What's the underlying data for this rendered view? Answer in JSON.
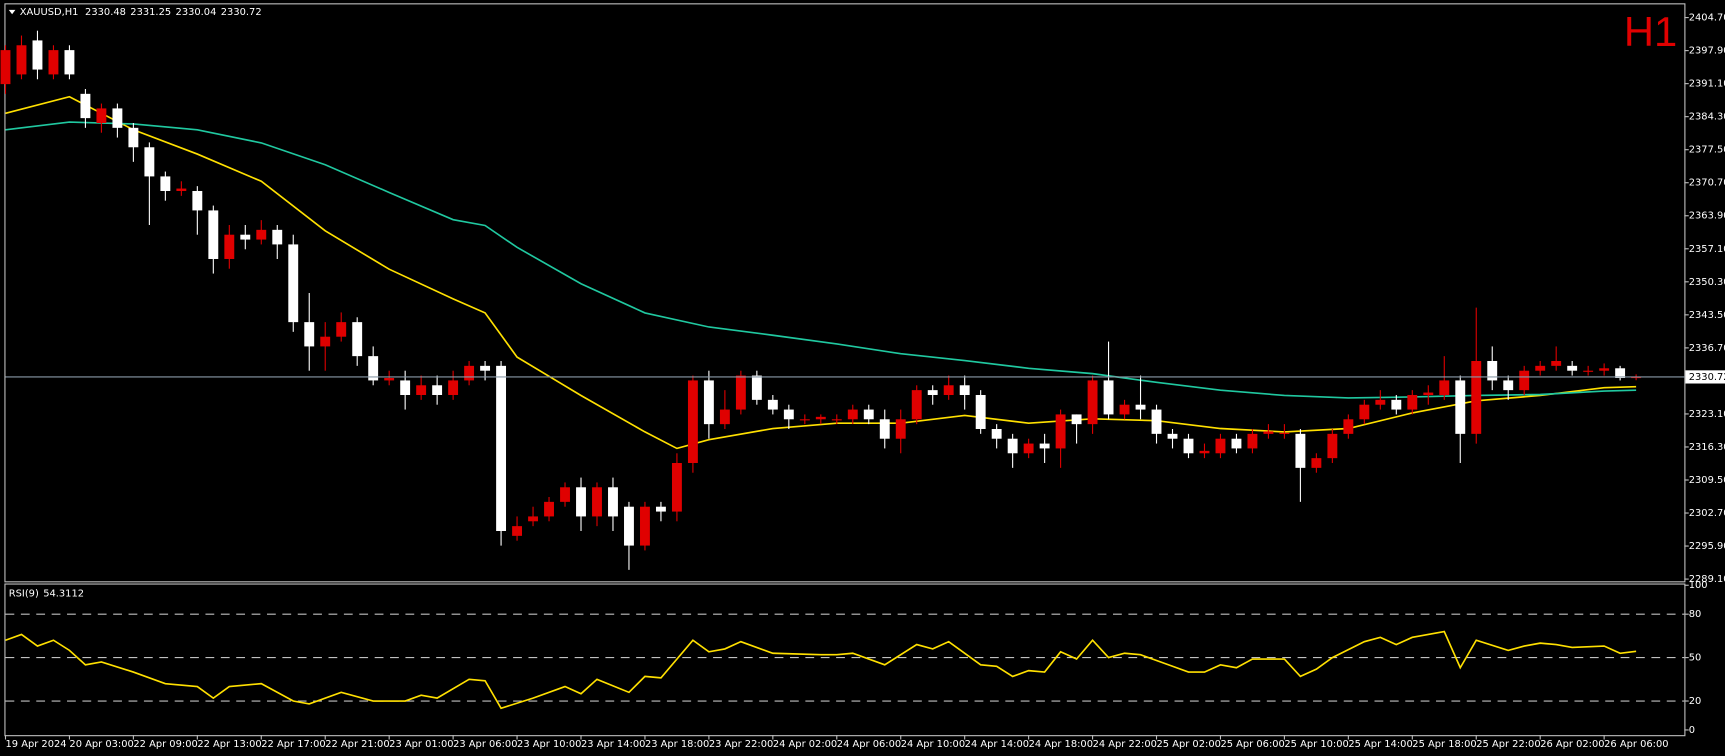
{
  "chart_data": [
    {
      "type": "candlestick",
      "symbol": "XAUUSD,H1",
      "timeframe_label": "H1",
      "categories": [
        "19 Apr 2024",
        null,
        null,
        null,
        "20 Apr 03:00",
        null,
        null,
        null,
        "22 Apr 09:00",
        null,
        null,
        null,
        "22 Apr 13:00",
        null,
        null,
        null,
        "22 Apr 17:00",
        null,
        null,
        null,
        "22 Apr 21:00",
        null,
        null,
        null,
        "23 Apr 01:00",
        null,
        null,
        null,
        "23 Apr 06:00",
        null,
        null,
        null,
        "23 Apr 10:00",
        null,
        null,
        null,
        "23 Apr 14:00",
        null,
        null,
        null,
        "23 Apr 18:00",
        null,
        null,
        null,
        "23 Apr 22:00",
        null,
        null,
        null,
        "24 Apr 02:00",
        null,
        null,
        null,
        "24 Apr 06:00",
        null,
        null,
        null,
        "24 Apr 10:00",
        null,
        null,
        null,
        "24 Apr 14:00",
        null,
        null,
        null,
        "24 Apr 18:00",
        null,
        null,
        null,
        "24 Apr 22:00",
        null,
        null,
        null,
        "25 Apr 02:00",
        null,
        null,
        null,
        "25 Apr 06:00",
        null,
        null,
        null,
        "25 Apr 10:00",
        null,
        null,
        null,
        "25 Apr 14:00",
        null,
        null,
        null,
        "25 Apr 18:00",
        null,
        null,
        null,
        "25 Apr 22:00",
        null,
        null,
        null,
        "26 Apr 02:00",
        null,
        null,
        null,
        "26 Apr 06:00",
        null,
        null
      ],
      "open": [
        2391,
        2393,
        2400,
        2393,
        2398,
        2389,
        2383,
        2386,
        2382,
        2378,
        2372,
        2369,
        2369,
        2365,
        2355,
        2360,
        2359,
        2361,
        2358,
        2342,
        2337,
        2339,
        2342,
        2335,
        2330,
        2330,
        2327,
        2329,
        2327,
        2330,
        2333,
        2333,
        2298,
        2301,
        2302,
        2305,
        2308,
        2302,
        2308,
        2304,
        2296,
        2304,
        2303,
        2313,
        2330,
        2321,
        2324,
        2331,
        2326,
        2324,
        2322,
        2322,
        2322,
        2322,
        2324,
        2322,
        2318,
        2322,
        2328,
        2327,
        2329,
        2327,
        2320,
        2318,
        2315,
        2317,
        2316,
        2323,
        2321,
        2330,
        2323,
        2325,
        2324,
        2319,
        2318,
        2315,
        2315,
        2318,
        2316,
        2319,
        2319,
        2319,
        2312,
        2314,
        2319,
        2322,
        2325,
        2326,
        2324,
        2327,
        2327,
        2330,
        2319,
        2334,
        2330,
        2328,
        2332,
        2333,
        2333,
        2332,
        2332,
        2332.5,
        2330.48
      ],
      "high": [
        2399,
        2401,
        2402,
        2399,
        2399,
        2390,
        2387,
        2387,
        2383,
        2379,
        2373,
        2371,
        2370,
        2366,
        2362,
        2362,
        2363,
        2362,
        2360,
        2348,
        2342,
        2344,
        2343,
        2337,
        2332,
        2332,
        2331,
        2331,
        2332,
        2334,
        2334,
        2334,
        2302,
        2304,
        2306,
        2309,
        2310,
        2309,
        2310,
        2305,
        2305,
        2305,
        2315,
        2331,
        2332,
        2328,
        2332,
        2332,
        2327,
        2325,
        2323,
        2323,
        2323,
        2325,
        2325,
        2324,
        2324,
        2329,
        2329,
        2331,
        2331,
        2328,
        2321,
        2319,
        2318,
        2319,
        2324,
        2323,
        2331,
        2338,
        2326,
        2331,
        2325,
        2320,
        2319,
        2317,
        2319,
        2319,
        2320,
        2321,
        2321,
        2320,
        2315,
        2320,
        2323,
        2326,
        2328,
        2327,
        2328,
        2329,
        2335,
        2331,
        2345,
        2337,
        2331,
        2333,
        2334,
        2337,
        2334,
        2333,
        2333.5,
        2333,
        2331.25
      ],
      "low": [
        2389,
        2392,
        2392,
        2392,
        2392,
        2382,
        2381,
        2380,
        2375,
        2362,
        2367,
        2368,
        2360,
        2352,
        2353,
        2357,
        2358,
        2355,
        2340,
        2332,
        2332,
        2338,
        2333,
        2329,
        2329,
        2324,
        2326,
        2325,
        2326,
        2329,
        2330,
        2296,
        2297,
        2300,
        2301,
        2304,
        2299,
        2300,
        2299,
        2291,
        2295,
        2301,
        2301,
        2311,
        2318,
        2320,
        2323,
        2325,
        2323,
        2320,
        2321,
        2321,
        2321,
        2321,
        2321,
        2316,
        2315,
        2321,
        2325,
        2326,
        2324,
        2319,
        2316,
        2312,
        2314,
        2313,
        2312,
        2317,
        2319,
        2322,
        2322,
        2322,
        2317,
        2316,
        2314,
        2314,
        2314,
        2315,
        2315,
        2318,
        2318,
        2305,
        2311,
        2313,
        2318,
        2321,
        2324,
        2323,
        2323,
        2325,
        2326,
        2313,
        2317,
        2328,
        2326,
        2327,
        2331,
        2332,
        2331,
        2331,
        2331,
        2330,
        2330.04
      ],
      "close": [
        2398,
        2399,
        2394,
        2398,
        2393,
        2384,
        2386,
        2382,
        2378,
        2372,
        2369,
        2369.5,
        2365,
        2355,
        2360,
        2359,
        2361,
        2358,
        2342,
        2337,
        2339,
        2342,
        2335,
        2330,
        2330.5,
        2327,
        2329,
        2327,
        2330,
        2333,
        2332,
        2299,
        2300,
        2302,
        2305,
        2308,
        2302,
        2308,
        2302,
        2296,
        2304,
        2303,
        2313,
        2330,
        2321,
        2324,
        2331,
        2326,
        2324,
        2322,
        2322,
        2322.5,
        2322,
        2324,
        2322,
        2318,
        2322,
        2328,
        2327,
        2329,
        2327,
        2320,
        2318,
        2315,
        2317,
        2316,
        2323,
        2321,
        2330,
        2323,
        2325,
        2324,
        2319,
        2318,
        2315,
        2315.5,
        2318,
        2316,
        2319,
        2319.5,
        2319.2,
        2312,
        2314,
        2319,
        2322,
        2325,
        2326,
        2324,
        2327,
        2327.5,
        2330,
        2319,
        2334,
        2330,
        2328,
        2332,
        2333,
        2334,
        2332,
        2332,
        2332.5,
        2330.5,
        2330.72
      ],
      "up_color": "#e00000",
      "down_color": "#ffffff",
      "overlays": [
        {
          "color": "#ffe000",
          "x": [
            0,
            4,
            8,
            12,
            16,
            20,
            24,
            28,
            30,
            32,
            36,
            40,
            42,
            44,
            48,
            52,
            56,
            60,
            64,
            68,
            72,
            76,
            80,
            84,
            88,
            92,
            96,
            100,
            102
          ],
          "values": [
            2385.0,
            2388.4,
            2381.6,
            2376.6,
            2371.0,
            2360.8,
            2352.9,
            2346.8,
            2343.9,
            2334.8,
            2326.9,
            2319.4,
            2316.0,
            2317.8,
            2320.1,
            2321.2,
            2321.2,
            2322.8,
            2321.2,
            2322.1,
            2321.7,
            2320.1,
            2319.4,
            2320.1,
            2323.3,
            2325.8,
            2326.9,
            2328.5,
            2328.7
          ]
        },
        {
          "color": "#20c8a0",
          "x": [
            0,
            4,
            8,
            12,
            16,
            20,
            24,
            28,
            30,
            32,
            36,
            40,
            44,
            48,
            52,
            56,
            60,
            64,
            68,
            72,
            76,
            80,
            84,
            88,
            92,
            96,
            100,
            102
          ],
          "values": [
            2381.6,
            2383.2,
            2382.8,
            2381.6,
            2378.9,
            2374.4,
            2368.7,
            2363.1,
            2361.9,
            2357.4,
            2349.9,
            2343.9,
            2341.0,
            2339.3,
            2337.5,
            2335.5,
            2334.1,
            2332.5,
            2331.4,
            2329.6,
            2328.0,
            2326.9,
            2326.4,
            2326.6,
            2326.9,
            2327.1,
            2327.8,
            2328.0
          ]
        }
      ],
      "ylim": [
        2289.1,
        2404.7
      ],
      "yticks": [
        {
          "value": 2404.7,
          "label": "2404.70"
        },
        {
          "value": 2397.9,
          "label": "2397.90"
        },
        {
          "value": 2391.1,
          "label": "2391.10"
        },
        {
          "value": 2384.3,
          "label": "2384.30"
        },
        {
          "value": 2377.5,
          "label": "2377.50"
        },
        {
          "value": 2370.7,
          "label": "2370.70"
        },
        {
          "value": 2363.9,
          "label": "2363.90"
        },
        {
          "value": 2357.1,
          "label": "2357.10"
        },
        {
          "value": 2350.3,
          "label": "2350.30"
        },
        {
          "value": 2343.5,
          "label": "2343.50"
        },
        {
          "value": 2336.7,
          "label": "2336.70"
        },
        {
          "value": 2323.1,
          "label": "2323.10"
        },
        {
          "value": 2316.3,
          "label": "2316.30"
        },
        {
          "value": 2309.5,
          "label": "2309.50"
        },
        {
          "value": 2302.7,
          "label": "2302.70"
        },
        {
          "value": 2295.9,
          "label": "2295.90"
        },
        {
          "value": 2289.1,
          "label": "2289.10"
        }
      ]
    },
    {
      "type": "line",
      "title": "RSI(9)",
      "color": "#ffe000",
      "x": [
        0,
        1,
        2,
        3,
        4,
        5,
        6,
        8,
        10,
        12,
        13,
        14,
        16,
        18,
        19,
        21,
        23,
        25,
        26,
        27,
        29,
        30,
        31,
        33,
        35,
        36,
        37,
        39,
        40,
        41,
        43,
        44,
        45,
        46,
        48,
        51,
        52,
        53,
        55,
        57,
        58,
        59,
        61,
        62,
        63,
        64,
        65,
        66,
        67,
        68,
        69,
        70,
        71,
        73,
        74,
        75,
        76,
        77,
        78,
        80,
        81,
        82,
        83,
        85,
        86,
        87,
        88,
        89,
        90,
        91,
        92,
        94,
        95,
        96,
        97,
        98,
        100,
        101,
        102
      ],
      "values": [
        62,
        66,
        58,
        62,
        55,
        45,
        47,
        40,
        32,
        30,
        22,
        30,
        32,
        20,
        18,
        26,
        20,
        20,
        24,
        22,
        35,
        34,
        15,
        22,
        30,
        25,
        35,
        26,
        37,
        36,
        62,
        54,
        56,
        61,
        53,
        52,
        52,
        53,
        45,
        59,
        56,
        61,
        45,
        44,
        37,
        41,
        40,
        54,
        49,
        62,
        50,
        53,
        52,
        44,
        40,
        40,
        45,
        43,
        49,
        49,
        37,
        42,
        50,
        61,
        64,
        59,
        64,
        66,
        68,
        43,
        62,
        55,
        58,
        60,
        59,
        57,
        58,
        53,
        54.3112
      ],
      "ylim": [
        0,
        100
      ],
      "yticks": [
        100,
        80,
        50,
        20,
        0
      ],
      "dashed_levels": [
        80,
        50,
        20
      ]
    }
  ]
}
